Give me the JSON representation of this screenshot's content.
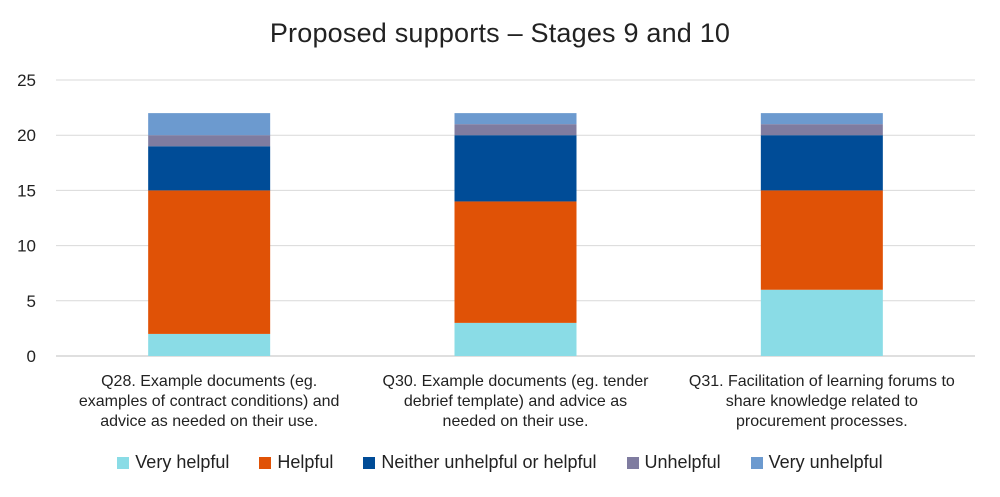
{
  "chart_data": {
    "type": "bar",
    "stacked": true,
    "title": "Proposed supports – Stages 9 and 10",
    "xlabel": "",
    "ylabel": "",
    "ylim": [
      0,
      25
    ],
    "yticks": [
      "0",
      "5",
      "10",
      "15",
      "20",
      "25"
    ],
    "grid": true,
    "legend_position": "bottom",
    "categories": [
      "Q28. Example documents (eg. examples of contract conditions) and advice as needed on their use.",
      "Q30. Example documents (eg. tender debrief template) and advice as needed on their use.",
      "Q31. Facilitation of learning forums to share knowledge related to procurement processes."
    ],
    "category_lines": [
      [
        "Q28. Example documents (eg.",
        "examples of contract conditions) and",
        "advice as needed on their use."
      ],
      [
        "Q30. Example documents (eg. tender",
        "debrief template) and advice as",
        "needed on their use."
      ],
      [
        "Q31. Facilitation of learning forums to",
        "share knowledge related to",
        "procurement processes."
      ]
    ],
    "series": [
      {
        "name": "Very helpful",
        "color": "#8ADCE6",
        "values": [
          2,
          3,
          6
        ]
      },
      {
        "name": "Helpful",
        "color": "#E05206",
        "values": [
          13,
          11,
          9
        ]
      },
      {
        "name": "Neither unhelpful or helpful",
        "color": "#004C97",
        "values": [
          4,
          6,
          5
        ]
      },
      {
        "name": "Unhelpful",
        "color": "#7F7CA0",
        "values": [
          1,
          1,
          1
        ]
      },
      {
        "name": "Very unhelpful",
        "color": "#6C9ACF",
        "values": [
          2,
          1,
          1
        ]
      }
    ]
  }
}
